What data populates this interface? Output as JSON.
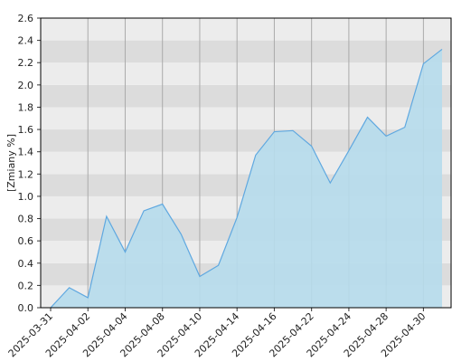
{
  "chart_data": {
    "type": "area",
    "y_label": "[Zmiany %]",
    "categories": [
      "2025-03-31",
      null,
      "2025-04-02",
      null,
      "2025-04-04",
      null,
      "2025-04-08",
      null,
      "2025-04-10",
      null,
      "2025-04-14",
      null,
      "2025-04-16",
      null,
      "2025-04-22",
      null,
      "2025-04-24",
      null,
      "2025-04-28",
      null,
      "2025-04-30",
      null
    ],
    "values": [
      0.0,
      0.18,
      0.09,
      0.82,
      0.5,
      0.87,
      0.93,
      0.66,
      0.28,
      0.38,
      0.81,
      1.37,
      1.58,
      1.59,
      1.45,
      1.12,
      1.41,
      1.71,
      1.54,
      1.62,
      2.19,
      2.32
    ],
    "color": "#5fa8e0",
    "fill": "#b6dcec",
    "ylim": [
      0,
      2.6
    ],
    "yticks": [
      {
        "value": 0,
        "label": "0.0"
      },
      0.2,
      0.4,
      0.6,
      0.8,
      {
        "value": 1,
        "label": "1.0"
      },
      1.2,
      1.4,
      1.6,
      1.8,
      {
        "value": 2,
        "label": "2.0"
      },
      2.2,
      2.4,
      2.6
    ],
    "grid": true
  }
}
